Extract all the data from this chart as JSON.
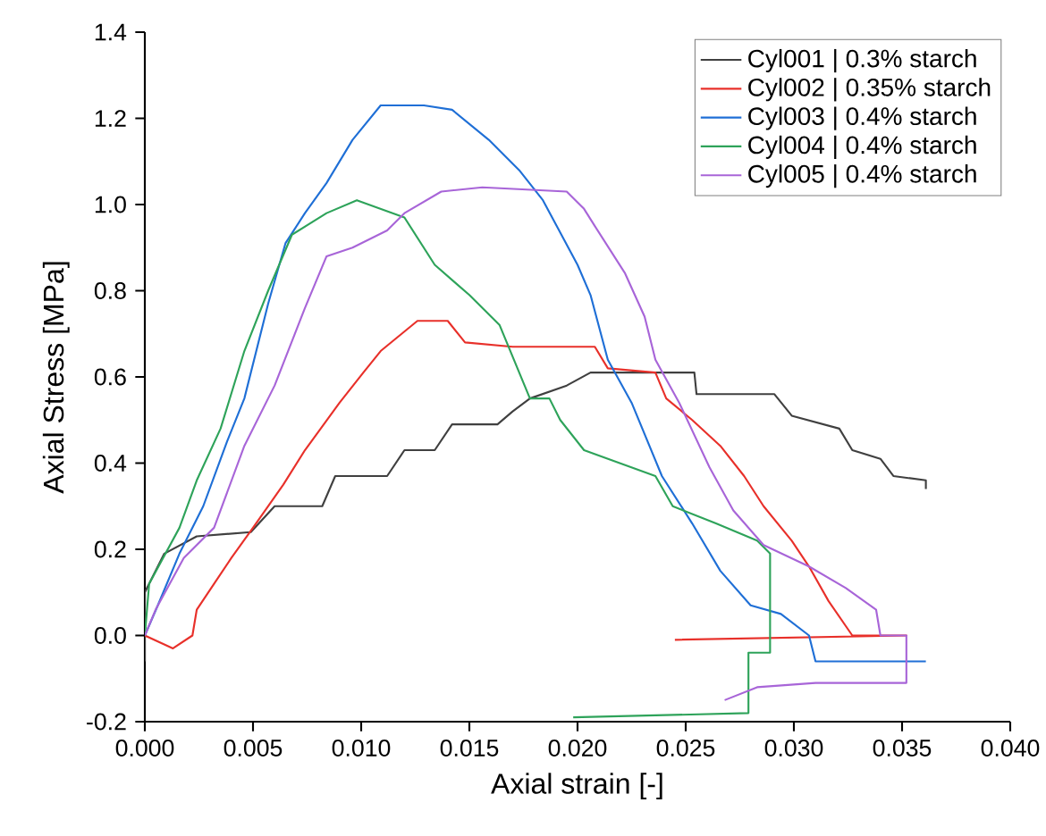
{
  "chart_data": {
    "type": "line",
    "xlabel": "Axial strain [-]",
    "ylabel": "Axial Stress [MPa]",
    "xlim": [
      0,
      0.04
    ],
    "ylim": [
      -0.2,
      1.4
    ],
    "xticks": [
      {
        "value": 0,
        "label": "0.000"
      },
      {
        "value": 0.005,
        "label": "0.005"
      },
      {
        "value": 0.01,
        "label": "0.010"
      },
      {
        "value": 0.015,
        "label": "0.015"
      },
      {
        "value": 0.02,
        "label": "0.020"
      },
      {
        "value": 0.025,
        "label": "0.025"
      },
      {
        "value": 0.03,
        "label": "0.030"
      },
      {
        "value": 0.035,
        "label": "0.035"
      },
      {
        "value": 0.04,
        "label": "0.040"
      }
    ],
    "yticks": [
      -0.2,
      {
        "value": 0,
        "label": "0.0"
      },
      0.2,
      0.4,
      0.6,
      0.8,
      {
        "value": 1,
        "label": "1.0"
      },
      1.2,
      1.4
    ],
    "legend": "top right",
    "grid": false,
    "marker": "none",
    "line_style": "solid",
    "series": [
      {
        "name": "Cyl001 | 0.3% starch",
        "color": "#404040",
        "x": [
          0,
          0,
          0.0009,
          0.0024,
          0.0049,
          0.006,
          0.0082,
          0.0088,
          0.0112,
          0.012,
          0.0134,
          0.0142,
          0.0163,
          0.017,
          0.0178,
          0.0195,
          0.0206,
          0.0214,
          0.0254,
          0.0255,
          0.0291,
          0.0299,
          0.0321,
          0.0327,
          0.034,
          0.0346,
          0.0361,
          0.0361
        ],
        "values": [
          -0.06,
          0.1,
          0.19,
          0.23,
          0.24,
          0.3,
          0.3,
          0.37,
          0.37,
          0.43,
          0.43,
          0.49,
          0.49,
          0.52,
          0.55,
          0.58,
          0.61,
          0.61,
          0.61,
          0.56,
          0.56,
          0.51,
          0.48,
          0.43,
          0.41,
          0.37,
          0.36,
          0.34
        ]
      },
      {
        "name": "Cyl002 | 0.35% starch",
        "color": "#e8302a",
        "x": [
          0,
          0.0013,
          0.0022,
          0.0024,
          0.0032,
          0.004,
          0.005,
          0.0064,
          0.0074,
          0.009,
          0.0101,
          0.0109,
          0.0126,
          0.014,
          0.0148,
          0.017,
          0.0208,
          0.0214,
          0.0236,
          0.0241,
          0.0253,
          0.0266,
          0.0277,
          0.0286,
          0.0299,
          0.0307,
          0.0316,
          0.0327,
          0.034,
          0.0352,
          0.0245
        ],
        "values": [
          0,
          -0.03,
          0,
          0.06,
          0.12,
          0.18,
          0.25,
          0.35,
          0.43,
          0.54,
          0.61,
          0.66,
          0.73,
          0.73,
          0.68,
          0.67,
          0.67,
          0.62,
          0.61,
          0.55,
          0.5,
          0.44,
          0.37,
          0.3,
          0.22,
          0.16,
          0.08,
          0,
          0,
          0,
          -0.01
        ]
      },
      {
        "name": "Cyl003 | 0.4% starch",
        "color": "#1f6fd6",
        "x": [
          0,
          0.0006,
          0.0016,
          0.0027,
          0.0038,
          0.0046,
          0.0057,
          0.0065,
          0.0074,
          0.0084,
          0.0096,
          0.0109,
          0.0129,
          0.0142,
          0.0159,
          0.0173,
          0.0184,
          0.02,
          0.0206,
          0.0214,
          0.0225,
          0.0239,
          0.0253,
          0.0266,
          0.028,
          0.0294,
          0.0307,
          0.031,
          0.0361
        ],
        "values": [
          0,
          0.07,
          0.19,
          0.3,
          0.45,
          0.55,
          0.77,
          0.91,
          0.98,
          1.05,
          1.15,
          1.23,
          1.23,
          1.22,
          1.15,
          1.08,
          1.01,
          0.86,
          0.79,
          0.64,
          0.54,
          0.37,
          0.26,
          0.15,
          0.07,
          0.05,
          0,
          -0.06,
          -0.06
        ]
      },
      {
        "name": "Cyl004 | 0.4% starch",
        "color": "#2ea35a",
        "x": [
          0,
          0.0002,
          0.0016,
          0.0024,
          0.0035,
          0.0046,
          0.0057,
          0.0068,
          0.0084,
          0.0098,
          0.0109,
          0.012,
          0.0134,
          0.015,
          0.0164,
          0.0178,
          0.0187,
          0.0192,
          0.0203,
          0.0236,
          0.0244,
          0.0264,
          0.0283,
          0.0289,
          0.0289,
          0.0279,
          0.0279,
          0.0198
        ],
        "values": [
          0,
          0.12,
          0.25,
          0.36,
          0.48,
          0.66,
          0.8,
          0.93,
          0.98,
          1.01,
          0.99,
          0.97,
          0.86,
          0.79,
          0.72,
          0.55,
          0.55,
          0.5,
          0.43,
          0.37,
          0.3,
          0.26,
          0.22,
          0.19,
          -0.04,
          -0.04,
          -0.18,
          -0.19
        ]
      },
      {
        "name": "Cyl005 | 0.4% starch",
        "color": "#a865d8",
        "x": [
          0,
          0.0005,
          0.0018,
          0.0032,
          0.0046,
          0.006,
          0.0074,
          0.0084,
          0.0096,
          0.0112,
          0.012,
          0.0137,
          0.0156,
          0.0195,
          0.0203,
          0.0208,
          0.0222,
          0.0231,
          0.0236,
          0.0247,
          0.0261,
          0.0272,
          0.0286,
          0.0307,
          0.0324,
          0.0338,
          0.034,
          0.0352,
          0.0352,
          0.031,
          0.0283,
          0.0268
        ],
        "values": [
          0,
          0.06,
          0.18,
          0.25,
          0.44,
          0.58,
          0.76,
          0.88,
          0.9,
          0.94,
          0.98,
          1.03,
          1.04,
          1.03,
          0.99,
          0.95,
          0.84,
          0.74,
          0.64,
          0.54,
          0.39,
          0.29,
          0.21,
          0.16,
          0.11,
          0.06,
          0,
          0,
          -0.11,
          -0.11,
          -0.12,
          -0.15
        ]
      }
    ]
  }
}
